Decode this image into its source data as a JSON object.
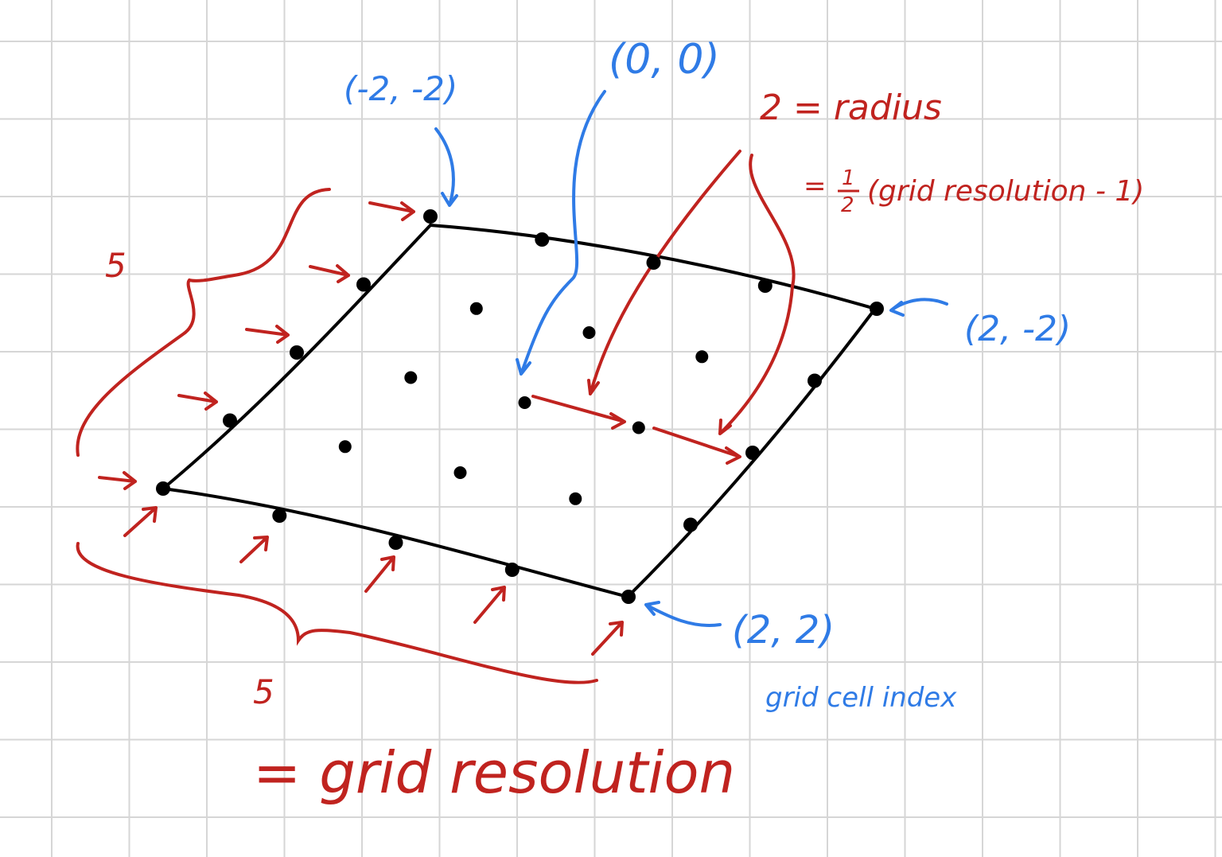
{
  "colors": {
    "background": "#ffffff",
    "grid_line": "#d6d6d6",
    "ink_black": "#000000",
    "ink_red": "#c0231f",
    "ink_blue": "#2f7be6"
  },
  "labels": {
    "corner_top_left": "(-2, -2)",
    "center": "(0, 0)",
    "corner_top_right": "(2, -2)",
    "corner_bottom_right": "(2, 2)",
    "grid_cell_index": "grid cell index",
    "radius_line": "2 = radius",
    "radius_formula_prefix": "=",
    "radius_formula_num": "1",
    "radius_formula_den": "2",
    "radius_formula_body": "(grid resolution - 1)",
    "count_left": "5",
    "count_bottom": "5",
    "grid_resolution": "= grid resolution"
  },
  "grid": {
    "resolution": 5,
    "radius": 2
  }
}
